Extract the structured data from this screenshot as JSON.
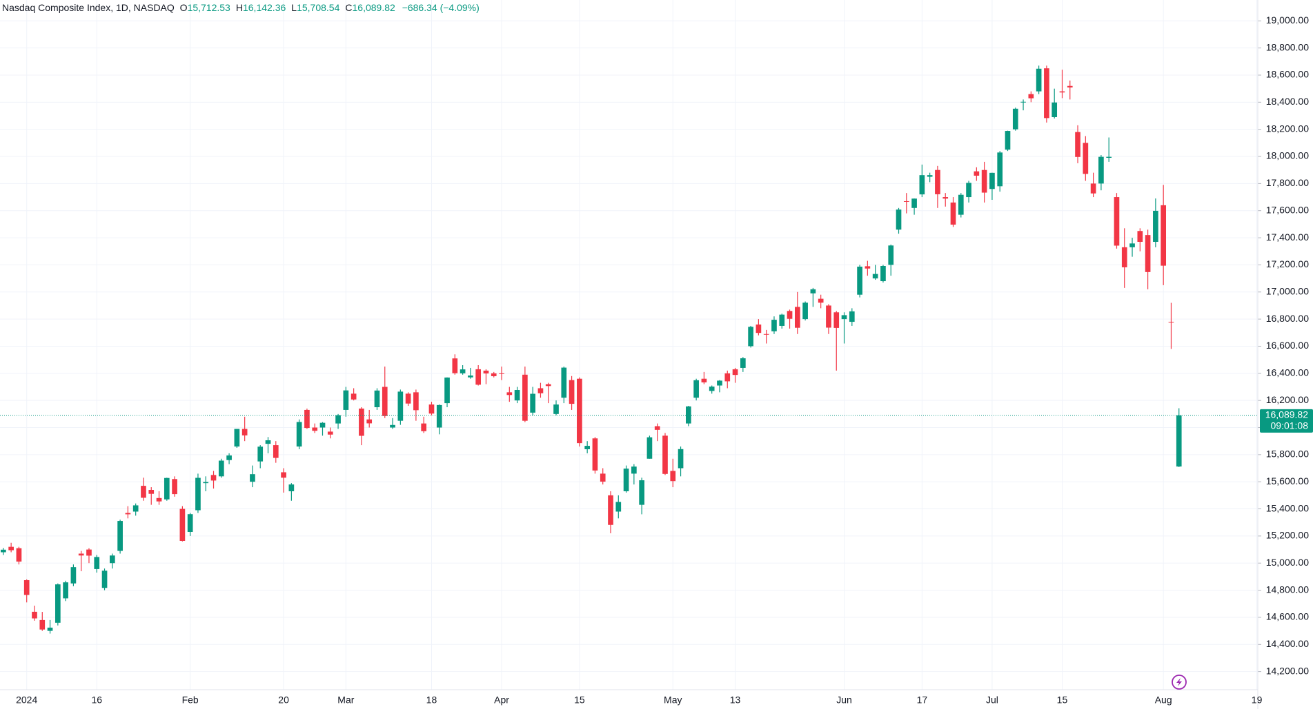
{
  "chart_data": {
    "type": "candlestick",
    "title": "Nasdaq Composite Index, 1D, NASDAQ",
    "ohlc_legend": [
      {
        "key": "O",
        "text": "15,712.53"
      },
      {
        "key": "H",
        "text": "16,142.36"
      },
      {
        "key": "L",
        "text": "15,708.54"
      },
      {
        "key": "C",
        "text": "16,089.82"
      }
    ],
    "change": "−686.34 (−4.09%)",
    "categories": [
      null,
      null,
      null,
      "2024",
      null,
      null,
      null,
      null,
      null,
      null,
      null,
      null,
      "16",
      null,
      null,
      null,
      null,
      null,
      null,
      null,
      null,
      null,
      null,
      null,
      "Feb",
      null,
      null,
      null,
      null,
      null,
      null,
      null,
      null,
      null,
      null,
      null,
      "20",
      null,
      null,
      null,
      null,
      null,
      null,
      null,
      "Mar",
      null,
      null,
      null,
      null,
      null,
      null,
      null,
      null,
      null,
      null,
      "18",
      null,
      null,
      null,
      null,
      null,
      null,
      null,
      null,
      "Apr",
      null,
      null,
      null,
      null,
      null,
      null,
      null,
      null,
      null,
      "15",
      null,
      null,
      null,
      null,
      null,
      null,
      null,
      null,
      null,
      null,
      null,
      "May",
      null,
      null,
      null,
      null,
      null,
      null,
      null,
      "13",
      null,
      null,
      null,
      null,
      null,
      null,
      null,
      null,
      null,
      null,
      null,
      null,
      null,
      "Jun",
      null,
      null,
      null,
      null,
      null,
      null,
      null,
      null,
      null,
      "17",
      null,
      null,
      null,
      null,
      null,
      null,
      null,
      null,
      "Jul",
      null,
      null,
      null,
      null,
      null,
      null,
      null,
      null,
      "15",
      null,
      null,
      null,
      null,
      null,
      null,
      null,
      null,
      null,
      null,
      null,
      null,
      "Aug",
      null,
      null,
      null,
      null,
      null,
      null,
      null,
      null,
      null,
      null,
      null,
      "19"
    ],
    "open": [
      15080,
      15120,
      15110,
      14874,
      14641,
      14580,
      14500,
      14560,
      14740,
      14850,
      15070,
      15100,
      14956,
      14817,
      15000,
      15090,
      15370,
      15380,
      15570,
      15540,
      15480,
      15470,
      15620,
      15400,
      15230,
      15390,
      15590,
      15650,
      15640,
      15760,
      15860,
      15990,
      15600,
      15750,
      15880,
      15870,
      15670,
      15530,
      15860,
      16130,
      16000,
      16000,
      15970,
      16030,
      16130,
      16250,
      16140,
      16060,
      16150,
      16300,
      16000,
      16050,
      16250,
      16260,
      16030,
      16170,
      16000,
      16180,
      16510,
      16400,
      16370,
      16430,
      16420,
      16400,
      16400,
      16260,
      16200,
      16390,
      16110,
      16290,
      16320,
      16100,
      16220,
      16350,
      16360,
      15840,
      15920,
      15660,
      15500,
      15380,
      15530,
      15660,
      15430,
      15770,
      16010,
      15940,
      15680,
      15700,
      16030,
      16220,
      16360,
      16270,
      16310,
      16400,
      16430,
      16440,
      16600,
      16760,
      16690,
      16710,
      16750,
      16860,
      16890,
      16800,
      16990,
      16950,
      16900,
      16850,
      16800,
      16780,
      16980,
      17190,
      17100,
      17080,
      17200,
      17460,
      17670,
      17620,
      17720,
      17850,
      17900,
      17700,
      17660,
      17570,
      17700,
      17890,
      17900,
      17760,
      17780,
      18050,
      18200,
      18400,
      18460,
      18480,
      18650,
      18290,
      18480,
      18520,
      18180,
      18100,
      17800,
      17800,
      17990,
      17700,
      17330,
      17330,
      17450,
      17420,
      17370,
      17640,
      16780,
      15712.53,
      null,
      null,
      null,
      null,
      null,
      null,
      null,
      null,
      null,
      null
    ],
    "high": [
      15112,
      15150,
      15120,
      14880,
      14686,
      14640,
      14580,
      14850,
      14870,
      14990,
      15090,
      15110,
      15060,
      14960,
      15070,
      15320,
      15420,
      15440,
      15630,
      15560,
      15530,
      15630,
      15640,
      15420,
      15370,
      15660,
      15640,
      15680,
      15770,
      15810,
      15990,
      16080,
      15720,
      15870,
      15930,
      15900,
      15700,
      15590,
      16060,
      16140,
      16030,
      16040,
      16000,
      16100,
      16300,
      16290,
      16150,
      16130,
      16290,
      16450,
      16070,
      16280,
      16260,
      16280,
      16080,
      16190,
      16170,
      16370,
      16540,
      16460,
      16440,
      16460,
      16430,
      16410,
      16450,
      16300,
      16300,
      16450,
      16300,
      16330,
      16330,
      16200,
      16450,
      16380,
      16370,
      15900,
      15930,
      15700,
      15530,
      15500,
      15720,
      15730,
      15630,
      15940,
      16030,
      15960,
      15770,
      15860,
      16160,
      16360,
      16410,
      16310,
      16350,
      16420,
      16440,
      16520,
      16750,
      16800,
      16720,
      16820,
      16840,
      16870,
      17000,
      16930,
      17030,
      16980,
      16910,
      16860,
      16850,
      16880,
      17200,
      17230,
      17200,
      17200,
      17350,
      17620,
      17730,
      17690,
      17940,
      17880,
      17930,
      17730,
      17700,
      17730,
      17820,
      17920,
      17960,
      17880,
      18040,
      18190,
      18360,
      18420,
      18480,
      18670,
      18670,
      18500,
      18640,
      18560,
      18230,
      18150,
      17880,
      18010,
      18140,
      17730,
      17470,
      17400,
      17470,
      17460,
      17690,
      17790,
      16920,
      16142.36,
      null,
      null,
      null,
      null,
      null,
      null,
      null,
      null,
      null,
      null
    ],
    "low": [
      15060,
      15080,
      14990,
      14710,
      14575,
      14500,
      14480,
      14540,
      14720,
      14830,
      14940,
      15000,
      14930,
      14800,
      14960,
      15070,
      15330,
      15350,
      15460,
      15430,
      15430,
      15460,
      15490,
      15160,
      15200,
      15370,
      15530,
      15550,
      15630,
      15730,
      15850,
      15900,
      15560,
      15700,
      15810,
      15740,
      15520,
      15460,
      15840,
      15990,
      15960,
      15940,
      15920,
      15990,
      16080,
      16200,
      15870,
      16000,
      16130,
      16070,
      15990,
      16020,
      16160,
      16050,
      15960,
      16090,
      15950,
      16150,
      16390,
      16390,
      16360,
      16310,
      16320,
      16370,
      16350,
      16190,
      16180,
      16040,
      16090,
      16220,
      16180,
      16090,
      16180,
      16130,
      15860,
      15810,
      15660,
      15580,
      15220,
      15330,
      15520,
      15580,
      15360,
      15770,
      15900,
      15650,
      15560,
      15640,
      16010,
      16200,
      16320,
      16250,
      16260,
      16290,
      16330,
      16410,
      16590,
      16680,
      16620,
      16690,
      16730,
      16730,
      16690,
      16790,
      16890,
      16880,
      16690,
      16420,
      16620,
      16750,
      16960,
      17120,
      17090,
      17070,
      17120,
      17430,
      17580,
      17570,
      17700,
      17810,
      17620,
      17630,
      17480,
      17550,
      17660,
      17820,
      17660,
      17680,
      17740,
      18040,
      18190,
      18340,
      18400,
      18460,
      18250,
      18280,
      18430,
      18420,
      17950,
      17820,
      17700,
      17750,
      17960,
      17320,
      17030,
      17260,
      17300,
      17020,
      17330,
      17050,
      16580,
      15708.54,
      null,
      null,
      null,
      null,
      null,
      null,
      null,
      null,
      null,
      null
    ],
    "close": [
      15099,
      15095,
      15011,
      14765,
      14592,
      14510,
      14524,
      14843,
      14858,
      14970,
      15056,
      15055,
      15045,
      14944,
      15056,
      15311,
      15360,
      15426,
      15482,
      15511,
      15455,
      15628,
      15509,
      15164,
      15361,
      15629,
      15598,
      15609,
      15756,
      15794,
      15990,
      15942,
      15656,
      15859,
      15906,
      15776,
      15630,
      15580,
      16041,
      15997,
      15976,
      16035,
      15948,
      16091,
      16274,
      16207,
      15939,
      16031,
      16273,
      16085,
      16019,
      16265,
      16177,
      16128,
      15973,
      16103,
      16166,
      16369,
      16401,
      16429,
      16384,
      16316,
      16399,
      16379,
      16396,
      16240,
      16277,
      16050,
      16249,
      16253,
      16306,
      16170,
      16442,
      16175,
      15885,
      15865,
      15683,
      15601,
      15282,
      15451,
      15697,
      15712,
      15611,
      15928,
      15983,
      15658,
      15605,
      15841,
      16156,
      16349,
      16333,
      16302,
      16346,
      16341,
      16388,
      16511,
      16743,
      16698,
      16686,
      16795,
      16833,
      16802,
      16736,
      16921,
      17020,
      16921,
      16737,
      16735,
      16829,
      16857,
      17187,
      17173,
      17133,
      17192,
      17343,
      17608,
      17667,
      17689,
      17862,
      17862,
      17721,
      17689,
      17497,
      17717,
      17805,
      17858,
      17733,
      17879,
      18029,
      18188,
      18352,
      18403,
      18429,
      18647,
      18283,
      18398,
      18472,
      18509,
      17996,
      17871,
      17727,
      17997,
      17997,
      17342,
      17182,
      17358,
      17370,
      17147,
      17599,
      17194,
      16776,
      16089.82,
      null,
      null,
      null,
      null,
      null,
      null,
      null,
      null,
      null,
      null
    ],
    "up_color": "#089981",
    "down_color": "#f23645",
    "ylim": [
      14066,
      19154
    ],
    "yticks": [
      {
        "value": 14200,
        "label": "14,200.00"
      },
      {
        "value": 14400,
        "label": "14,400.00"
      },
      {
        "value": 14600,
        "label": "14,600.00"
      },
      {
        "value": 14800,
        "label": "14,800.00"
      },
      {
        "value": 15000,
        "label": "15,000.00"
      },
      {
        "value": 15200,
        "label": "15,200.00"
      },
      {
        "value": 15400,
        "label": "15,400.00"
      },
      {
        "value": 15600,
        "label": "15,600.00"
      },
      {
        "value": 15800,
        "label": "15,800.00"
      },
      {
        "value": 16000,
        "label": "16,000.00"
      },
      {
        "value": 16200,
        "label": "16,200.00"
      },
      {
        "value": 16400,
        "label": "16,400.00"
      },
      {
        "value": 16600,
        "label": "16,600.00"
      },
      {
        "value": 16800,
        "label": "16,800.00"
      },
      {
        "value": 17000,
        "label": "17,000.00"
      },
      {
        "value": 17200,
        "label": "17,200.00"
      },
      {
        "value": 17400,
        "label": "17,400.00"
      },
      {
        "value": 17600,
        "label": "17,600.00"
      },
      {
        "value": 17800,
        "label": "17,800.00"
      },
      {
        "value": 18000,
        "label": "18,000.00"
      },
      {
        "value": 18200,
        "label": "18,200.00"
      },
      {
        "value": 18400,
        "label": "18,400.00"
      },
      {
        "value": 18600,
        "label": "18,600.00"
      },
      {
        "value": 18800,
        "label": "18,800.00"
      },
      {
        "value": 19000,
        "label": "19,000.00"
      }
    ],
    "grid": true,
    "last_price": {
      "value": 16089.82,
      "label": "16,089.82"
    },
    "countdown": "09:01:08"
  }
}
